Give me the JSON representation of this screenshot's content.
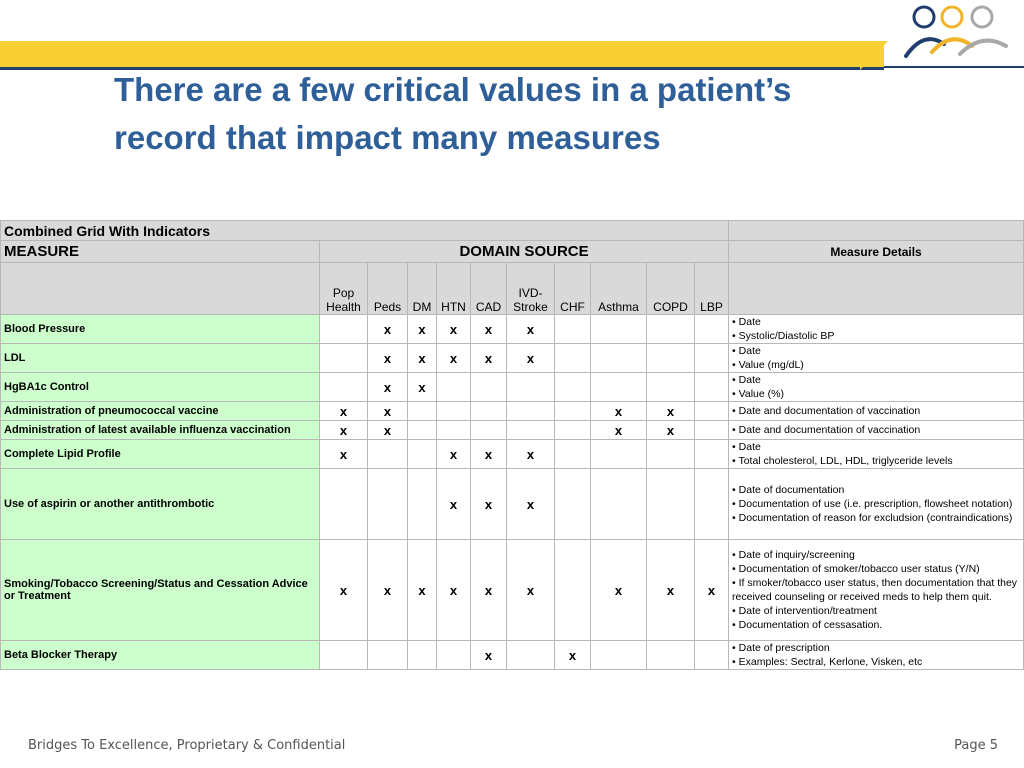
{
  "slide": {
    "title": "There are a few critical values in a patient’s record that impact many measures",
    "footer": "Bridges To Excellence, Proprietary & Confidential",
    "page": "Page 5"
  },
  "colors": {
    "title": "#2f5f98",
    "banner": "#f8d033",
    "navy": "#1f3e6e",
    "measure_bg": "#ccffcc",
    "header_bg": "#d9d9d9"
  },
  "grid": {
    "caption": "Combined Grid With Indicators",
    "measure_header": "MEASURE",
    "domain_header": "DOMAIN SOURCE",
    "details_header": "Measure Details",
    "domains": [
      "Pop Health",
      "Peds",
      "DM",
      "HTN",
      "CAD",
      "IVD- Stroke",
      "CHF",
      "Asthma",
      "COPD",
      "LBP"
    ],
    "rows": [
      {
        "measure": "Blood Pressure",
        "marks": [
          "",
          "x",
          "x",
          "x",
          "x",
          "x",
          "",
          "",
          "",
          ""
        ],
        "details": [
          "• Date",
          "• Systolic/Diastolic BP"
        ]
      },
      {
        "measure": "LDL",
        "marks": [
          "",
          "x",
          "x",
          "x",
          "x",
          "x",
          "",
          "",
          "",
          ""
        ],
        "details": [
          "• Date",
          "• Value (mg/dL)"
        ]
      },
      {
        "measure": "HgBA1c Control",
        "marks": [
          "",
          "x",
          "x",
          "",
          "",
          "",
          "",
          "",
          "",
          ""
        ],
        "details": [
          "• Date",
          "• Value (%)"
        ]
      },
      {
        "measure": "Administration of pneumococcal vaccine",
        "marks": [
          "x",
          "x",
          "",
          "",
          "",
          "",
          "",
          "x",
          "x",
          ""
        ],
        "details": [
          "• Date and documentation of vaccination"
        ]
      },
      {
        "measure": "Administration of latest available influenza vaccination",
        "marks": [
          "x",
          "x",
          "",
          "",
          "",
          "",
          "",
          "x",
          "x",
          ""
        ],
        "details": [
          "• Date and documentation of vaccination"
        ]
      },
      {
        "measure": "Complete Lipid Profile",
        "marks": [
          "x",
          "",
          "",
          "x",
          "x",
          "x",
          "",
          "",
          "",
          ""
        ],
        "details": [
          "• Date",
          "• Total cholesterol, LDL, HDL, triglyceride levels"
        ]
      },
      {
        "measure": "Use of aspirin or another antithrombotic",
        "marks": [
          "",
          "",
          "",
          "x",
          "x",
          "x",
          "",
          "",
          "",
          ""
        ],
        "details": [
          "• Date of documentation",
          "• Documentation of use (i.e. prescription, flowsheet notation)",
          "• Documentation of reason for excludsion (contraindications)"
        ]
      },
      {
        "measure": "Smoking/Tobacco Screening/Status and Cessation Advice or Treatment",
        "marks": [
          "x",
          "x",
          "x",
          "x",
          "x",
          "x",
          "",
          "x",
          "x",
          "x"
        ],
        "details": [
          "• Date of inquiry/screening",
          "• Documentation of smoker/tobacco user status (Y/N)",
          "• If smoker/tobacco user status, then documentation that they received counseling or received meds to help them quit.",
          "• Date of intervention/treatment",
          "• Documentation of cessasation."
        ]
      },
      {
        "measure": "Beta Blocker Therapy",
        "marks": [
          "",
          "",
          "",
          "",
          "x",
          "",
          "x",
          "",
          "",
          ""
        ],
        "details": [
          "• Date of prescription",
          "• Examples: Sectral, Kerlone, Visken, etc"
        ]
      }
    ]
  }
}
